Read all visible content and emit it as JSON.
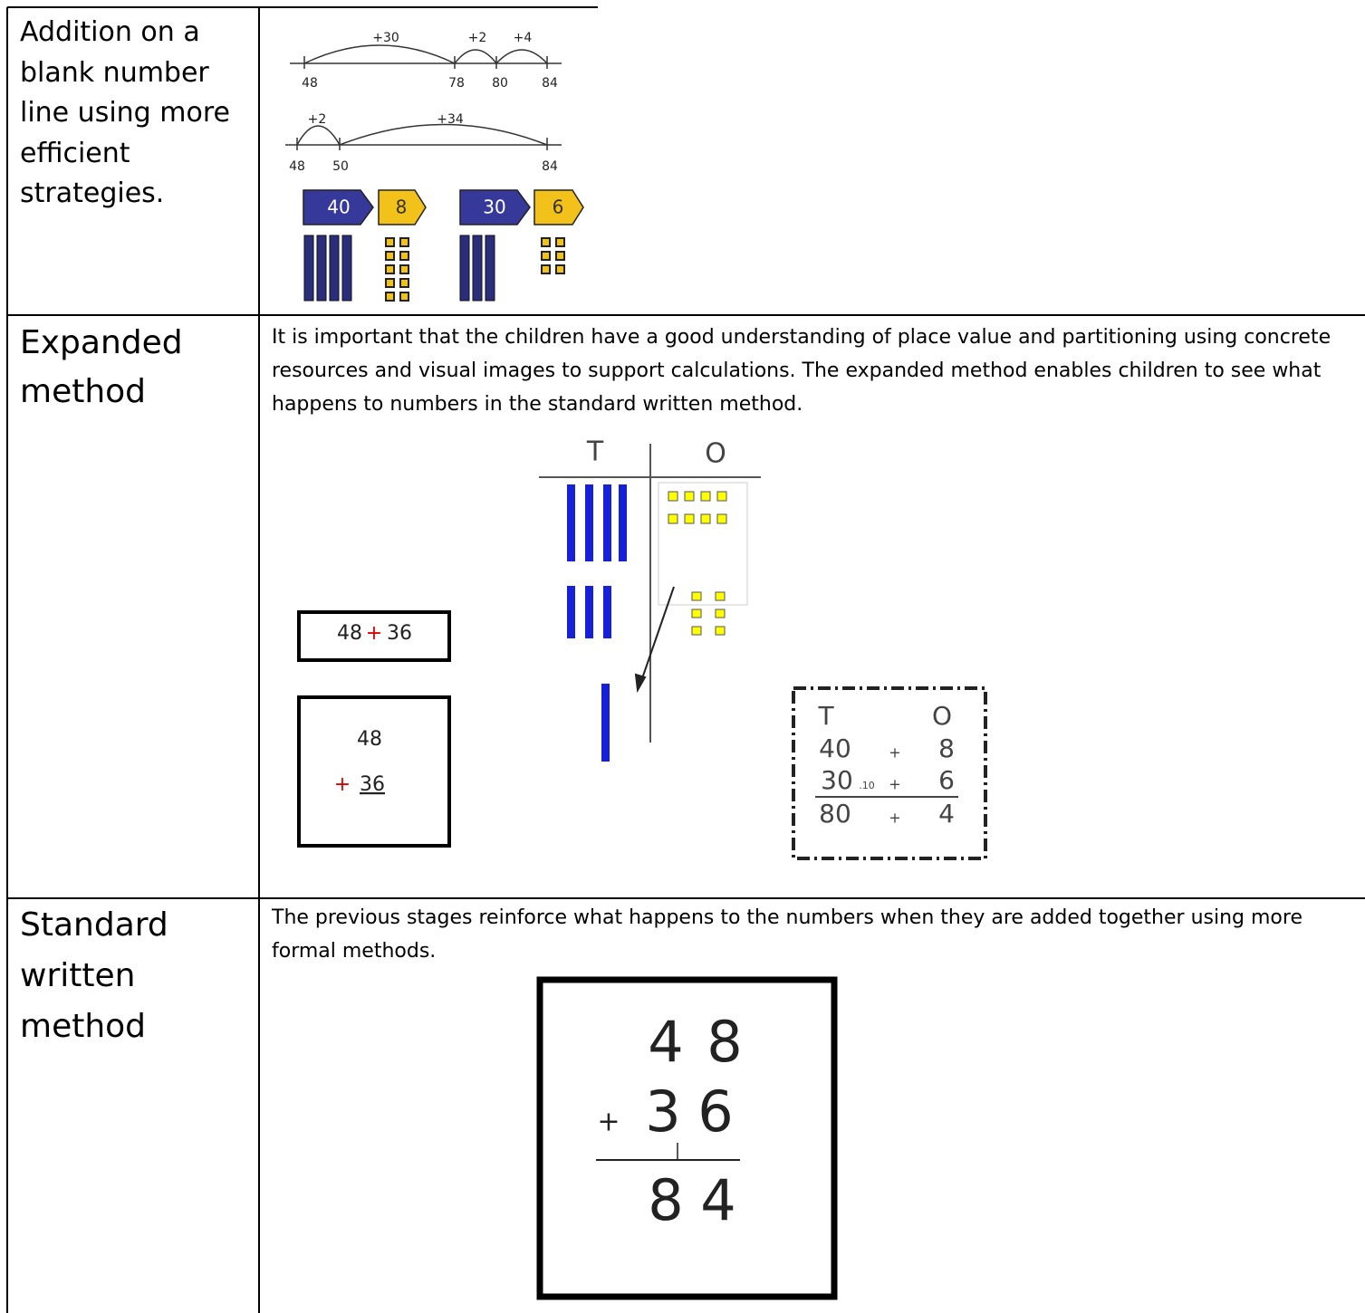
{
  "number_line_row": {
    "label": "Addition on a blank number line using more efficient strategies.",
    "line_1": {
      "jumps": [
        "+30",
        "+2",
        "+4"
      ],
      "marks": [
        "48",
        "78",
        "80",
        "84"
      ]
    },
    "line_2": {
      "jumps": [
        "+2",
        "+34"
      ],
      "marks": [
        "48",
        "50",
        "84"
      ]
    },
    "arrow_cards": [
      "40",
      "8",
      "30",
      "6"
    ]
  },
  "expanded_row": {
    "label": "Expanded method",
    "intro": "It is important that the children have a good understanding of place value and partitioning using concrete resources and visual images to support calculations. The expanded method enables children to see what happens to numbers in the standard written method.",
    "place_value_headers": [
      "T",
      "O"
    ],
    "horizontal_sum": {
      "a": "48",
      "op": "+",
      "b": "36"
    },
    "vertical_sum": {
      "a": "48",
      "op": "+",
      "b": "36"
    },
    "partitioned": {
      "headers": [
        "T",
        "O"
      ],
      "rows": [
        [
          "40",
          "+",
          "8"
        ],
        [
          "30",
          "+",
          "6"
        ],
        [
          "80",
          "+",
          "4"
        ]
      ],
      "carry": ".10"
    }
  },
  "standard_row": {
    "label": "Standard written method",
    "intro": "The previous stages reinforce what happens to the numbers when they are added together using more formal methods.",
    "sum": {
      "top": [
        "4",
        "8"
      ],
      "op": "+",
      "bottom": [
        "3",
        "6"
      ],
      "answer": [
        "8",
        "4"
      ]
    }
  }
}
